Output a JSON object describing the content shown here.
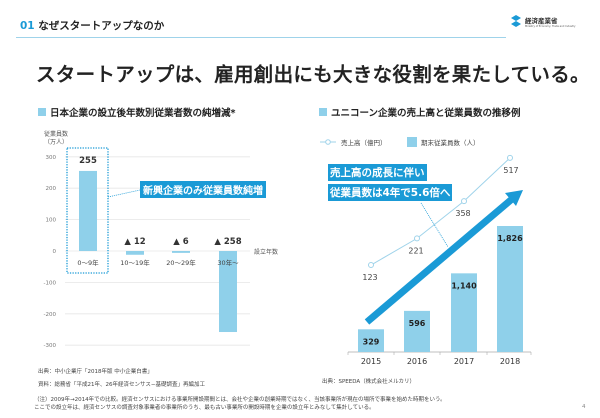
{
  "header": {
    "section_num": "01",
    "section_title": "なぜスタートアップなのか",
    "logo_text": "経済産業省",
    "logo_sub": "Ministry of Economy, Trade and Industry"
  },
  "title": "スタートアップは、雇用創出にも大きな役割を果たしている。",
  "page_number": "4",
  "colors": {
    "accent": "#1a9ad6",
    "bar": "#8fd0ea",
    "line": "#9fd3ea"
  },
  "chart_data": [
    {
      "type": "bar",
      "title": "日本企業の設立後年数別従業者数の純増減*",
      "ylabel": "従業員数（万人）",
      "xlabel": "設立年数",
      "ylim": [
        -300,
        300
      ],
      "yticks": [
        300,
        200,
        100,
        0,
        -100,
        -200,
        -300
      ],
      "grid": true,
      "categories": [
        "0～9年",
        "10～19年",
        "20～29年",
        "30年～"
      ],
      "values": [
        255,
        -12,
        -6,
        -258
      ],
      "data_labels": [
        "255",
        "▲ 12",
        "▲ 6",
        "▲ 258"
      ],
      "annotation": "新興企業のみ従業員数純増",
      "source": "出典：中小企業庁「2018年版 中小企業白書」",
      "material": "資料：総務省「平成21年、26年経済センサス−基礎調査」再編加工"
    },
    {
      "type": "bar+line",
      "title": "ユニコーン企業の売上高と従業員数の推移例",
      "categories": [
        "2015",
        "2016",
        "2017",
        "2018"
      ],
      "series": [
        {
          "name": "売上高（億円）",
          "type": "line",
          "values": [
            123,
            221,
            358,
            517
          ],
          "labels": [
            "123",
            "221",
            "358",
            "517"
          ]
        },
        {
          "name": "期末従業員数（人）",
          "type": "bar",
          "values": [
            329,
            596,
            1140,
            1826
          ],
          "labels": [
            "329",
            "596",
            "1,140",
            "1,826"
          ]
        }
      ],
      "annotation": [
        "売上高の成長に伴い",
        "従業員数は4年で5.6倍へ"
      ],
      "source": "出典：SPEEDA（株式会社メルカリ）"
    }
  ],
  "footnote": [
    "（注）2009年→2014年での比較。経済センサスにおける事業所開設期間とは、会社や企業の創業時期ではなく、当該事業所が現在の場所で事業を始めた時期をいう。",
    "ここでの設立年は、経済センサスの調査対象事業者の事業所のうち、最も古い事業所の開設時期を企業の設立年とみなして集計している。"
  ]
}
